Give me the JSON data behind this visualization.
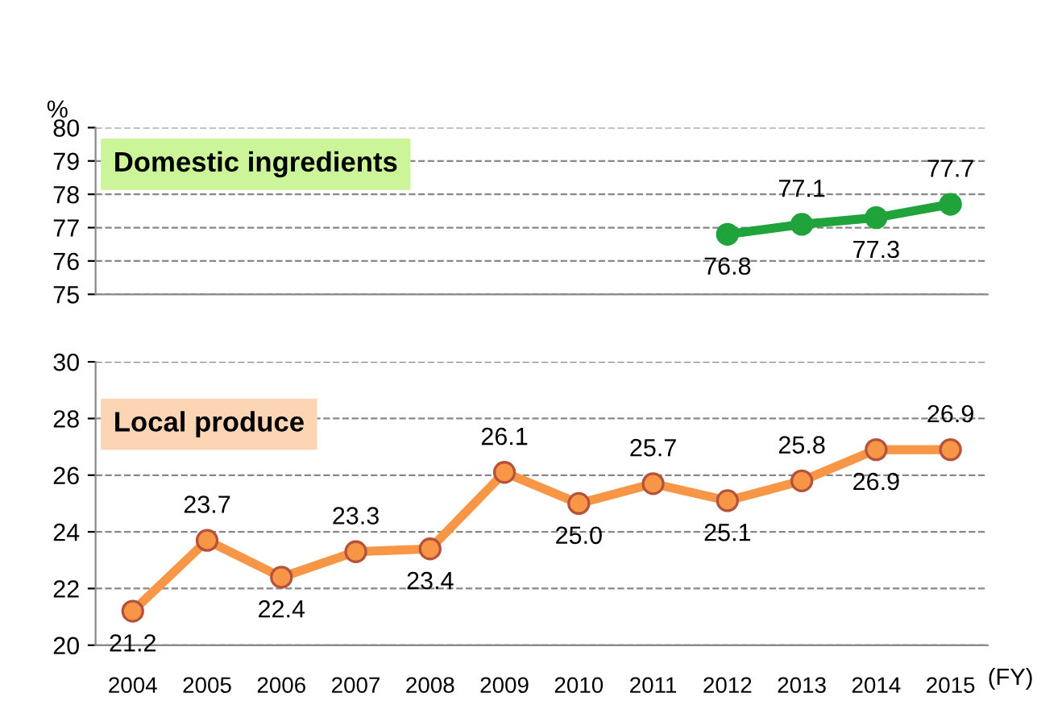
{
  "chart_data": [
    {
      "type": "line",
      "ylabel": "%",
      "categories": [
        "2004",
        "2005",
        "2006",
        "2007",
        "2008",
        "2009",
        "2010",
        "2011",
        "2012",
        "2013",
        "2014",
        "2015"
      ],
      "series": [
        {
          "name": "Domestic ingredients",
          "color": "#1fa33a",
          "values": [
            null,
            null,
            null,
            null,
            null,
            null,
            null,
            null,
            76.8,
            77.1,
            77.3,
            77.7
          ]
        }
      ],
      "ylim": [
        75,
        80
      ],
      "yticks": [
        75,
        76,
        77,
        78,
        79,
        80
      ],
      "grid": "y",
      "marker": "circle",
      "line_style": "solid",
      "data_labels": true,
      "tick_labels": "y"
    },
    {
      "type": "line",
      "xlabel": "(FY)",
      "categories": [
        "2004",
        "2005",
        "2006",
        "2007",
        "2008",
        "2009",
        "2010",
        "2011",
        "2012",
        "2013",
        "2014",
        "2015"
      ],
      "series": [
        {
          "name": "Local produce",
          "color": "#f79646",
          "values": [
            21.2,
            23.7,
            22.4,
            23.3,
            23.4,
            26.1,
            25.0,
            25.7,
            25.1,
            25.8,
            26.9,
            26.9
          ],
          "value_labels": [
            "21.2",
            "23.7",
            "22.4",
            "23.3",
            "23.4",
            "26.1",
            "25.0",
            "25.7",
            "25.1",
            "25.8",
            "26.9",
            "26.9"
          ]
        }
      ],
      "ylim": [
        20,
        30
      ],
      "yticks": [
        20,
        22,
        24,
        26,
        28,
        30
      ],
      "grid": "y",
      "marker": "circle",
      "line_style": "solid"
    }
  ]
}
